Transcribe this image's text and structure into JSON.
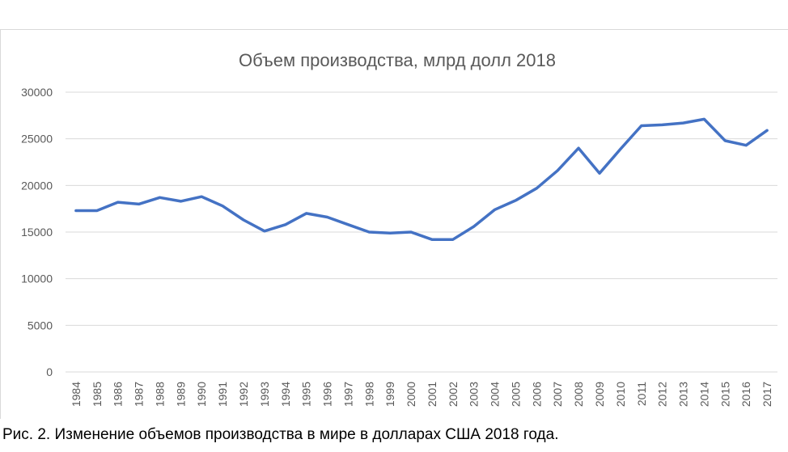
{
  "chart_data": {
    "type": "line",
    "title": "Объем производства, млрд долл 2018",
    "xlabel": "",
    "ylabel": "",
    "ylim": [
      0,
      30000
    ],
    "yticks": [
      0,
      5000,
      10000,
      15000,
      20000,
      25000,
      30000
    ],
    "grid": true,
    "legend": "none",
    "x": [
      "1984",
      "1985",
      "1986",
      "1987",
      "1988",
      "1989",
      "1990",
      "1991",
      "1992",
      "1993",
      "1994",
      "1995",
      "1996",
      "1997",
      "1998",
      "1999",
      "2000",
      "2001",
      "2002",
      "2003",
      "2004",
      "2005",
      "2006",
      "2007",
      "2008",
      "2009",
      "2010",
      "2011",
      "2012",
      "2013",
      "2014",
      "2015",
      "2016",
      "2017"
    ],
    "series": [
      {
        "values": [
          17300,
          17300,
          18200,
          18000,
          18700,
          18300,
          18800,
          17800,
          16300,
          15100,
          15800,
          17000,
          16600,
          15800,
          15000,
          14900,
          15000,
          14200,
          14200,
          15600,
          17400,
          18400,
          19700,
          21600,
          24000,
          21300,
          23900,
          26400,
          26500,
          26700,
          27100,
          24800,
          24300,
          25900
        ],
        "color": "#4472c4"
      }
    ]
  },
  "caption": "Рис. 2. Изменение объемов производства в мире в долларах США 2018 года."
}
